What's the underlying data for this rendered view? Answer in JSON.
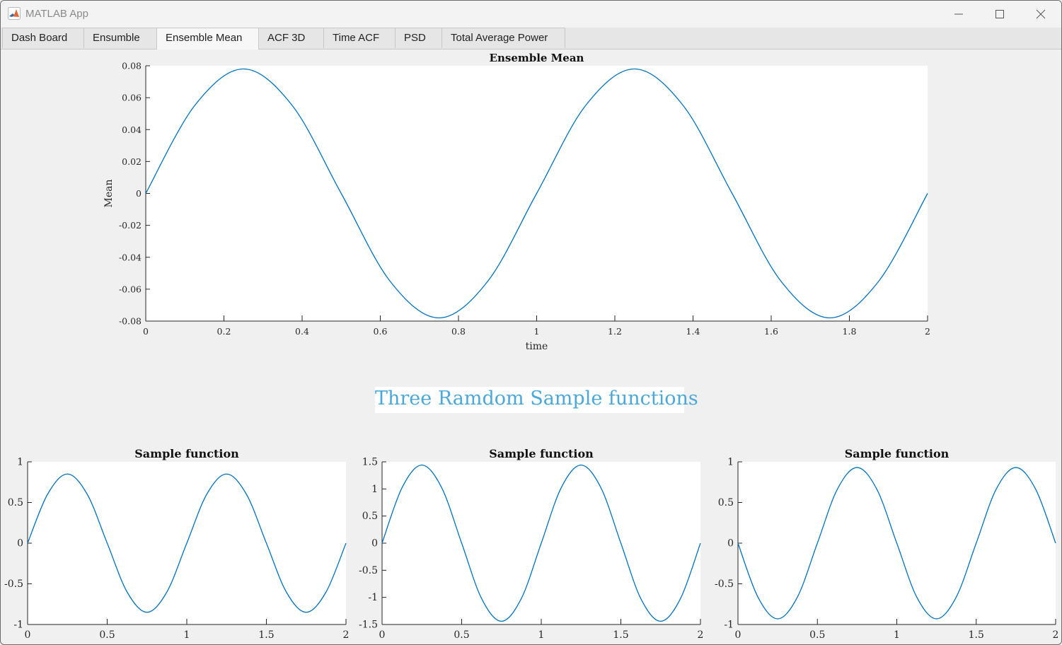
{
  "window": {
    "title": "MATLAB App",
    "icon": "matlab-logo-icon",
    "controls": [
      "minimize-icon",
      "maximize-icon",
      "close-icon"
    ]
  },
  "tabs": [
    {
      "label": "Dash Board"
    },
    {
      "label": "Ensumble"
    },
    {
      "label": "Ensemble Mean",
      "active": true
    },
    {
      "label": "ACF 3D"
    },
    {
      "label": "Time ACF"
    },
    {
      "label": "PSD"
    },
    {
      "label": "Total Average Power"
    }
  ],
  "section_heading": "Three Ramdom Sample functions",
  "colors": {
    "line": "#0072bd",
    "heading": "#4aa8da"
  },
  "chart_data": [
    {
      "type": "line",
      "title": "Ensemble Mean",
      "xlabel": "time",
      "ylabel": "Mean",
      "xlim": [
        0,
        2
      ],
      "ylim": [
        -0.08,
        0.08
      ],
      "xticks": [
        0,
        0.2,
        0.4,
        0.6,
        0.8,
        1,
        1.2,
        1.4,
        1.6,
        1.8,
        2
      ],
      "xtick_labels": [
        "0",
        "0.2",
        "0.4",
        "0.6",
        "0.8",
        "1",
        "1.2",
        "1.4",
        "1.6",
        "1.8",
        "2"
      ],
      "yticks": [
        -0.08,
        -0.06,
        -0.04,
        -0.02,
        0,
        0.02,
        0.04,
        0.06,
        0.08
      ],
      "ytick_labels": [
        "-0.08",
        "-0.06",
        "-0.04",
        "-0.02",
        "0",
        "0.02",
        "0.04",
        "0.06",
        "0.08"
      ],
      "x": [
        0,
        0.125,
        0.25,
        0.375,
        0.5,
        0.625,
        0.75,
        0.875,
        1,
        1.125,
        1.25,
        1.375,
        1.5,
        1.625,
        1.75,
        1.875,
        2
      ],
      "y": [
        0,
        0.055,
        0.078,
        0.055,
        0,
        -0.055,
        -0.078,
        -0.055,
        0,
        0.055,
        0.078,
        0.055,
        0,
        -0.055,
        -0.078,
        -0.055,
        0
      ],
      "grid": false
    },
    {
      "type": "line",
      "title": "Sample function",
      "xlim": [
        0,
        2
      ],
      "ylim": [
        -1,
        1
      ],
      "xticks": [
        0,
        0.5,
        1,
        1.5,
        2
      ],
      "xtick_labels": [
        "0",
        "0.5",
        "1",
        "1.5",
        "2"
      ],
      "yticks": [
        -1,
        -0.5,
        0,
        0.5,
        1
      ],
      "ytick_labels": [
        "-1",
        "-0.5",
        "0",
        "0.5",
        "1"
      ],
      "x": [
        0,
        0.125,
        0.25,
        0.375,
        0.5,
        0.625,
        0.75,
        0.875,
        1,
        1.125,
        1.25,
        1.375,
        1.5,
        1.625,
        1.75,
        1.875,
        2
      ],
      "y": [
        0,
        0.6,
        0.85,
        0.6,
        0,
        -0.6,
        -0.85,
        -0.6,
        0,
        0.6,
        0.85,
        0.6,
        0,
        -0.6,
        -0.85,
        -0.6,
        0
      ],
      "grid": false
    },
    {
      "type": "line",
      "title": "Sample function",
      "xlim": [
        0,
        2
      ],
      "ylim": [
        -1.5,
        1.5
      ],
      "xticks": [
        0,
        0.5,
        1,
        1.5,
        2
      ],
      "xtick_labels": [
        "0",
        "0.5",
        "1",
        "1.5",
        "2"
      ],
      "yticks": [
        -1.5,
        -1,
        -0.5,
        0,
        0.5,
        1,
        1.5
      ],
      "ytick_labels": [
        "-1.5",
        "-1",
        "-0.5",
        "0",
        "0.5",
        "1",
        "1.5"
      ],
      "x": [
        0,
        0.125,
        0.25,
        0.375,
        0.5,
        0.625,
        0.75,
        0.875,
        1,
        1.125,
        1.25,
        1.375,
        1.5,
        1.625,
        1.75,
        1.875,
        2
      ],
      "y": [
        0,
        1.02,
        1.44,
        1.02,
        0,
        -1.02,
        -1.44,
        -1.02,
        0,
        1.02,
        1.44,
        1.02,
        0,
        -1.02,
        -1.44,
        -1.02,
        0
      ],
      "grid": false
    },
    {
      "type": "line",
      "title": "Sample function",
      "xlim": [
        0,
        2
      ],
      "ylim": [
        -1,
        1
      ],
      "xticks": [
        0,
        0.5,
        1,
        1.5,
        2
      ],
      "xtick_labels": [
        "0",
        "0.5",
        "1",
        "1.5",
        "2"
      ],
      "yticks": [
        -1,
        -0.5,
        0,
        0.5,
        1
      ],
      "ytick_labels": [
        "-1",
        "-0.5",
        "0",
        "0.5",
        "1"
      ],
      "x": [
        0,
        0.125,
        0.25,
        0.375,
        0.5,
        0.625,
        0.75,
        0.875,
        1,
        1.125,
        1.25,
        1.375,
        1.5,
        1.625,
        1.75,
        1.875,
        2
      ],
      "y": [
        0,
        -0.66,
        -0.93,
        -0.66,
        0,
        0.66,
        0.93,
        0.66,
        0,
        -0.66,
        -0.93,
        -0.66,
        0,
        0.66,
        0.93,
        0.66,
        0
      ],
      "grid": false
    }
  ]
}
